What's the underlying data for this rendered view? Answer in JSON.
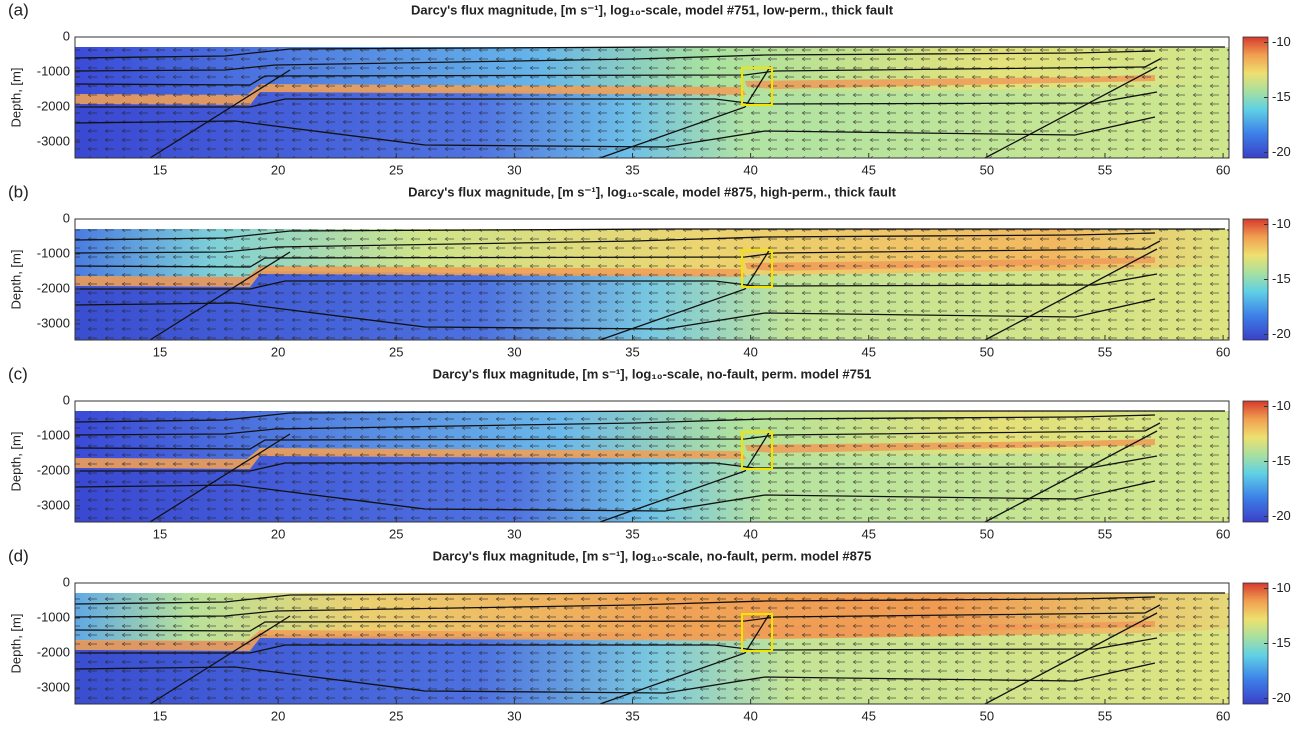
{
  "chart_data": [
    {
      "type": "heatmap",
      "panel_label": "(a)",
      "title": "Darcy's flux magnitude, [m s⁻¹], log₁₀-scale, model #751, low-perm., thick fault",
      "ylabel": "Depth, [m]",
      "xlim": [
        11.4,
        60.25
      ],
      "ylim": [
        -3460,
        0
      ],
      "xticks": [
        15,
        20,
        25,
        30,
        35,
        40,
        45,
        50,
        55,
        60
      ],
      "yticks": [
        0,
        -1000,
        -2000,
        -3000
      ],
      "colorbar": {
        "colormap": "jet",
        "lim": [
          -20.5,
          -9.5
        ],
        "ticks": [
          -10,
          -15,
          -20
        ]
      }
    },
    {
      "type": "heatmap",
      "panel_label": "(b)",
      "title": "Darcy's flux magnitude, [m s⁻¹], log₁₀-scale, model #875, high-perm., thick fault",
      "ylabel": "Depth, [m]",
      "xlim": [
        11.4,
        60.25
      ],
      "ylim": [
        -3460,
        0
      ],
      "xticks": [
        15,
        20,
        25,
        30,
        35,
        40,
        45,
        50,
        55,
        60
      ],
      "yticks": [
        0,
        -1000,
        -2000,
        -3000
      ],
      "colorbar": {
        "colormap": "jet",
        "lim": [
          -20.5,
          -9.5
        ],
        "ticks": [
          -10,
          -15,
          -20
        ]
      }
    },
    {
      "type": "heatmap",
      "panel_label": "(c)",
      "title": "Darcy's flux magnitude, [m s⁻¹], log₁₀-scale, no-fault, perm. model #751",
      "ylabel": "Depth, [m]",
      "xlim": [
        11.4,
        60.25
      ],
      "ylim": [
        -3460,
        0
      ],
      "xticks": [
        15,
        20,
        25,
        30,
        35,
        40,
        45,
        50,
        55,
        60
      ],
      "yticks": [
        0,
        -1000,
        -2000,
        -3000
      ],
      "colorbar": {
        "colormap": "jet",
        "lim": [
          -20.5,
          -9.5
        ],
        "ticks": [
          -10,
          -15,
          -20
        ]
      }
    },
    {
      "type": "heatmap",
      "panel_label": "(d)",
      "title": "Darcy's flux magnitude, [m s⁻¹], log₁₀-scale, no-fault, perm. model #875",
      "ylabel": "Depth, [m]",
      "xlim": [
        11.4,
        60.25
      ],
      "ylim": [
        -3460,
        0
      ],
      "xticks": [
        15,
        20,
        25,
        30,
        35,
        40,
        45,
        50,
        55,
        60
      ],
      "yticks": [
        0,
        -1000,
        -2000,
        -3000
      ],
      "colorbar": {
        "colormap": "jet",
        "lim": [
          -20.5,
          -9.5
        ],
        "ticks": [
          -10,
          -15,
          -20
        ]
      }
    }
  ]
}
